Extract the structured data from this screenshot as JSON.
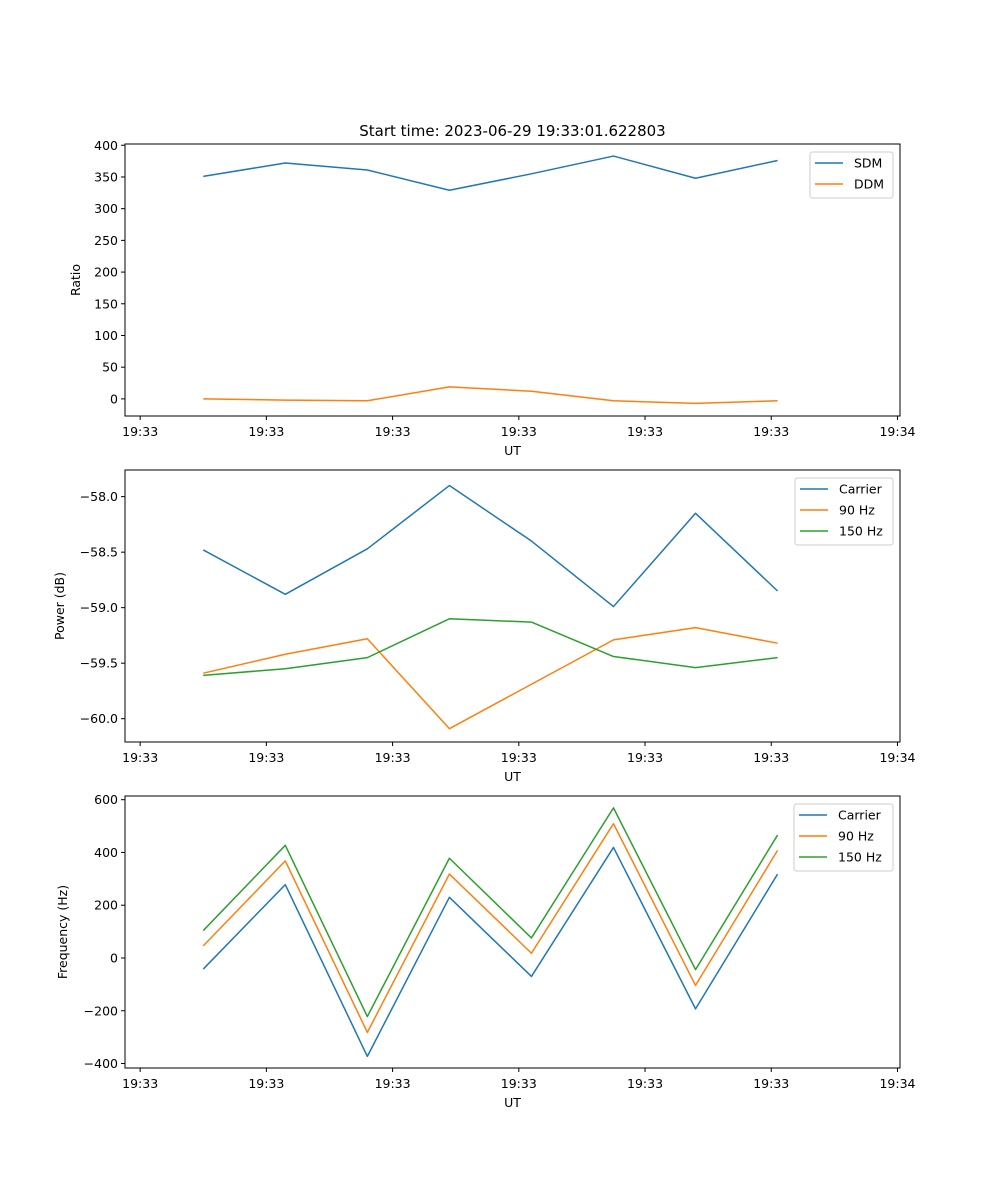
{
  "figure": {
    "title": "Start time: 2023-06-29 19:33:01.622803"
  },
  "chart_data": [
    {
      "type": "line",
      "title": "Start time: 2023-06-29 19:33:01.622803",
      "xlabel": "UT",
      "ylabel": "Ratio",
      "x_tick_labels": [
        "19:33",
        "19:33",
        "19:33",
        "19:33",
        "19:33",
        "19:33",
        "19:34"
      ],
      "x_ticks": [
        0,
        1,
        2,
        3,
        4,
        5,
        6
      ],
      "x": [
        0.5,
        1.15,
        1.8,
        2.45,
        3.1,
        3.75,
        4.4,
        5.05
      ],
      "xlim": [
        -0.12,
        6.02
      ],
      "ylim": [
        -27,
        402
      ],
      "y_ticks": [
        0,
        50,
        100,
        150,
        200,
        250,
        300,
        350,
        400
      ],
      "legend": "top-right",
      "grid": false,
      "series": [
        {
          "name": "SDM",
          "color": "#1f77b4",
          "values": [
            351,
            372,
            361,
            329,
            355,
            383,
            348,
            376
          ]
        },
        {
          "name": "DDM",
          "color": "#ff7f0e",
          "values": [
            0,
            -2,
            -3,
            19,
            12,
            -3,
            -7,
            -3
          ]
        }
      ]
    },
    {
      "type": "line",
      "xlabel": "UT",
      "ylabel": "Power (dB)",
      "x_tick_labels": [
        "19:33",
        "19:33",
        "19:33",
        "19:33",
        "19:33",
        "19:33",
        "19:34"
      ],
      "x_ticks": [
        0,
        1,
        2,
        3,
        4,
        5,
        6
      ],
      "x": [
        0.5,
        1.15,
        1.8,
        2.45,
        3.1,
        3.75,
        4.4,
        5.05
      ],
      "xlim": [
        -0.12,
        6.02
      ],
      "ylim": [
        -60.21,
        -57.76
      ],
      "y_ticks": [
        -60.0,
        -59.5,
        -59.0,
        -58.5,
        -58.0
      ],
      "y_tick_labels": [
        "−60.0",
        "−59.5",
        "−59.0",
        "−58.5",
        "−58.0"
      ],
      "legend": "top-right",
      "grid": false,
      "series": [
        {
          "name": "Carrier",
          "color": "#1f77b4",
          "values": [
            -58.48,
            -58.88,
            -58.47,
            -57.9,
            -58.4,
            -58.99,
            -58.15,
            -58.85
          ]
        },
        {
          "name": "90 Hz",
          "color": "#ff7f0e",
          "values": [
            -59.59,
            -59.42,
            -59.28,
            -60.09,
            -59.69,
            -59.29,
            -59.18,
            -59.32
          ]
        },
        {
          "name": "150 Hz",
          "color": "#2ca02c",
          "values": [
            -59.61,
            -59.55,
            -59.45,
            -59.1,
            -59.13,
            -59.44,
            -59.54,
            -59.45
          ]
        }
      ]
    },
    {
      "type": "line",
      "xlabel": "UT",
      "ylabel": "Frequency (Hz)",
      "x_tick_labels": [
        "19:33",
        "19:33",
        "19:33",
        "19:33",
        "19:33",
        "19:33",
        "19:34"
      ],
      "x_ticks": [
        0,
        1,
        2,
        3,
        4,
        5,
        6
      ],
      "x": [
        0.5,
        1.15,
        1.8,
        2.45,
        3.1,
        3.75,
        4.4,
        5.05
      ],
      "xlim": [
        -0.12,
        6.02
      ],
      "ylim": [
        -417,
        614
      ],
      "y_ticks": [
        -400,
        -200,
        0,
        200,
        400,
        600
      ],
      "y_tick_labels": [
        "−400",
        "−200",
        "0",
        "200",
        "400",
        "600"
      ],
      "legend": "top-right",
      "grid": false,
      "series": [
        {
          "name": "Carrier",
          "color": "#1f77b4",
          "values": [
            -42,
            278,
            -373,
            230,
            -70,
            419,
            -193,
            318
          ]
        },
        {
          "name": "90 Hz",
          "color": "#ff7f0e",
          "values": [
            46,
            368,
            -282,
            318,
            18,
            509,
            -104,
            408
          ]
        },
        {
          "name": "150 Hz",
          "color": "#2ca02c",
          "values": [
            104,
            427,
            -222,
            378,
            76,
            569,
            -44,
            466
          ]
        }
      ]
    }
  ]
}
